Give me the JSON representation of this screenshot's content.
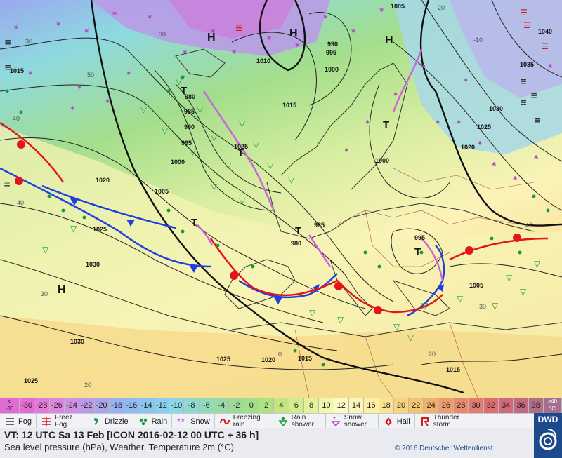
{
  "map": {
    "high_labels": [
      "H",
      "H",
      "H",
      "H"
    ],
    "trough_labels": [
      "T",
      "T",
      "T",
      "T",
      "T",
      "T"
    ],
    "isobar_labels": [
      "1010",
      "1015",
      "1005",
      "1000",
      "995",
      "990",
      "985",
      "980",
      "1020",
      "1025",
      "1030",
      "1035",
      "1040",
      "1005",
      "1030",
      "1025",
      "1020",
      "1015",
      "1000",
      "995",
      "1005",
      "1025",
      "1020",
      "1015",
      "1015",
      "1025",
      "1030",
      "1025",
      "990",
      "995",
      "1000",
      "985",
      "980"
    ],
    "temp_labels": [
      "50",
      "40",
      "40",
      "30",
      "20",
      "30",
      "30",
      "0",
      "-10",
      "-20",
      "20",
      "30",
      "40"
    ]
  },
  "scale": {
    "first_top": "<",
    "first_bottom": "-30",
    "values": [
      "-30",
      "-28",
      "-26",
      "-24",
      "-22",
      "-20",
      "-18",
      "-16",
      "-14",
      "-12",
      "-10",
      "-8",
      "-6",
      "-4",
      "-2",
      "0",
      "2",
      "4",
      "6",
      "8",
      "10",
      "12",
      "14",
      "16",
      "18",
      "20",
      "22",
      "24",
      "26",
      "28",
      "30",
      "32",
      "34",
      "36",
      "38"
    ],
    "last_top": "≥40",
    "last_bottom": "°C",
    "colors": [
      "#e36cd2",
      "#e37ad8",
      "#dd86df",
      "#cf8fe3",
      "#bc98e6",
      "#a8a5ea",
      "#99b1ee",
      "#8fbbf2",
      "#88c6f2",
      "#88d0ef",
      "#8cd8e6",
      "#8fdad0",
      "#92dbb8",
      "#98dba5",
      "#9cdc95",
      "#a4de8a",
      "#b2e182",
      "#c3e682",
      "#d5ec8a",
      "#e4f29a",
      "#f2f7b0",
      "#fbfbc7",
      "#fdf6b8",
      "#fcefa1",
      "#fbe48d",
      "#f8d57d",
      "#f5c46f",
      "#f2b06a",
      "#ee9c6a",
      "#ea8a6d",
      "#e47a70",
      "#dd6d73",
      "#d06a78",
      "#c26a80",
      "#b16c87"
    ]
  },
  "legend": {
    "fog": "Fog",
    "freezing_fog": "Freez. Fog",
    "drizzle": "Drizzle",
    "rain": "Rain",
    "snow": "Snow",
    "freezing_rain": "Freezing rain",
    "rain_shower": "Rain shower",
    "snow_shower": "Snow shower",
    "hail": "Hail",
    "thunderstorm": "Thunder storm"
  },
  "footer": {
    "vt": "VT: 12 UTC Sa 13 Feb [ICON 2016-02-12 00 UTC + 36 h]",
    "subtitle": "Sea level pressure (hPa), Weather, Temperature 2m (°C)",
    "copyright": "© 2016 Deutscher Wetterdienst",
    "logo": "DWD"
  },
  "colors": {
    "front_cold": "#1f3fe0",
    "front_warm": "#e4141c",
    "occlusion": "#c966d8",
    "isobar": "#222222"
  }
}
